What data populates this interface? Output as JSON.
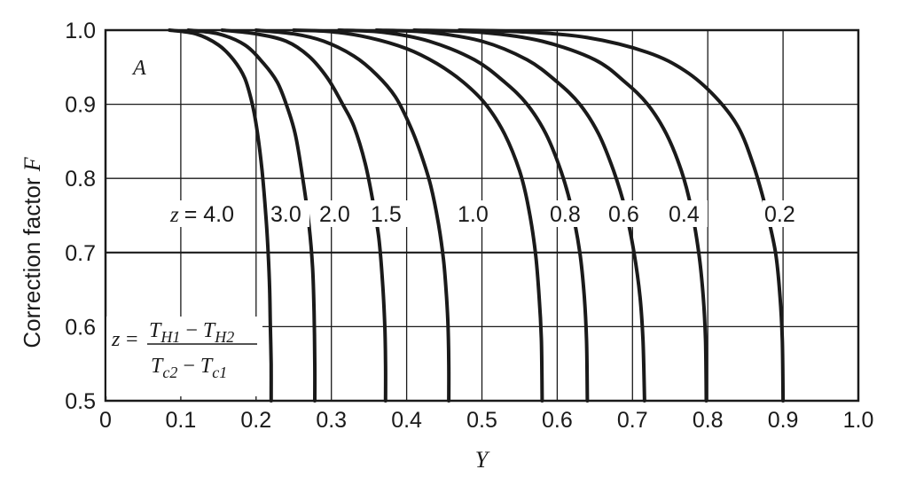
{
  "chart_data": {
    "type": "line",
    "title": "",
    "xlabel": "Y",
    "ylabel": {
      "text": "Correction factor ",
      "symbol": "F"
    },
    "xlim": [
      0,
      1.0
    ],
    "ylim": [
      0.5,
      1.0
    ],
    "grid": true,
    "panel_label": "A",
    "x_ticks": [
      "0",
      "0.1",
      "0.2",
      "0.3",
      "0.4",
      "0.5",
      "0.6",
      "0.7",
      "0.8",
      "0.9",
      "1.0"
    ],
    "y_ticks": [
      "0.5",
      "0.6",
      "0.7",
      "0.8",
      "0.9",
      "1.0"
    ],
    "formula": {
      "lhs": "z",
      "numerator": "T_{H1} − T_{H2}",
      "denominator": "T_{c2} − T_{c1}"
    },
    "series": [
      {
        "name": "z = 4.0",
        "label_prefix": "z",
        "label_value": "= 4.0",
        "points": [
          [
            0.085,
            1.0
          ],
          [
            0.12,
            0.995
          ],
          [
            0.15,
            0.98
          ],
          [
            0.17,
            0.96
          ],
          [
            0.185,
            0.935
          ],
          [
            0.195,
            0.9
          ],
          [
            0.202,
            0.86
          ],
          [
            0.208,
            0.81
          ],
          [
            0.213,
            0.75
          ],
          [
            0.216,
            0.7
          ],
          [
            0.218,
            0.65
          ],
          [
            0.219,
            0.6
          ],
          [
            0.22,
            0.55
          ],
          [
            0.22,
            0.5
          ]
        ]
      },
      {
        "name": "3.0",
        "label_value": "3.0",
        "points": [
          [
            0.11,
            1.0
          ],
          [
            0.15,
            0.995
          ],
          [
            0.185,
            0.98
          ],
          [
            0.21,
            0.955
          ],
          [
            0.228,
            0.93
          ],
          [
            0.24,
            0.9
          ],
          [
            0.252,
            0.86
          ],
          [
            0.262,
            0.8
          ],
          [
            0.27,
            0.74
          ],
          [
            0.275,
            0.68
          ],
          [
            0.277,
            0.62
          ],
          [
            0.278,
            0.55
          ],
          [
            0.278,
            0.5
          ]
        ]
      },
      {
        "name": "2.0",
        "label_value": "2.0",
        "points": [
          [
            0.155,
            1.0
          ],
          [
            0.2,
            0.995
          ],
          [
            0.24,
            0.985
          ],
          [
            0.27,
            0.965
          ],
          [
            0.295,
            0.935
          ],
          [
            0.315,
            0.9
          ],
          [
            0.33,
            0.87
          ],
          [
            0.345,
            0.82
          ],
          [
            0.355,
            0.77
          ],
          [
            0.363,
            0.72
          ],
          [
            0.368,
            0.66
          ],
          [
            0.371,
            0.6
          ],
          [
            0.372,
            0.55
          ],
          [
            0.372,
            0.5
          ]
        ]
      },
      {
        "name": "1.5",
        "label_value": "1.5",
        "points": [
          [
            0.2,
            1.0
          ],
          [
            0.25,
            0.995
          ],
          [
            0.29,
            0.985
          ],
          [
            0.33,
            0.965
          ],
          [
            0.36,
            0.94
          ],
          [
            0.385,
            0.91
          ],
          [
            0.405,
            0.87
          ],
          [
            0.42,
            0.83
          ],
          [
            0.432,
            0.79
          ],
          [
            0.442,
            0.74
          ],
          [
            0.449,
            0.69
          ],
          [
            0.453,
            0.64
          ],
          [
            0.455,
            0.6
          ],
          [
            0.456,
            0.55
          ],
          [
            0.456,
            0.5
          ]
        ]
      },
      {
        "name": "1.0",
        "label_value": "1.0",
        "points": [
          [
            0.25,
            1.0
          ],
          [
            0.3,
            0.998
          ],
          [
            0.35,
            0.99
          ],
          [
            0.4,
            0.975
          ],
          [
            0.44,
            0.955
          ],
          [
            0.475,
            0.93
          ],
          [
            0.505,
            0.9
          ],
          [
            0.53,
            0.86
          ],
          [
            0.55,
            0.81
          ],
          [
            0.562,
            0.76
          ],
          [
            0.571,
            0.7
          ],
          [
            0.576,
            0.64
          ],
          [
            0.579,
            0.58
          ],
          [
            0.58,
            0.5
          ]
        ]
      },
      {
        "name": "0.8",
        "label_value": "0.8",
        "points": [
          [
            0.31,
            1.0
          ],
          [
            0.37,
            0.997
          ],
          [
            0.43,
            0.985
          ],
          [
            0.49,
            0.96
          ],
          [
            0.53,
            0.93
          ],
          [
            0.56,
            0.9
          ],
          [
            0.585,
            0.86
          ],
          [
            0.605,
            0.81
          ],
          [
            0.619,
            0.76
          ],
          [
            0.63,
            0.7
          ],
          [
            0.636,
            0.64
          ],
          [
            0.639,
            0.58
          ],
          [
            0.64,
            0.5
          ]
        ]
      },
      {
        "name": "0.6",
        "label_value": "0.6",
        "points": [
          [
            0.36,
            1.0
          ],
          [
            0.43,
            0.997
          ],
          [
            0.5,
            0.985
          ],
          [
            0.56,
            0.96
          ],
          [
            0.6,
            0.93
          ],
          [
            0.63,
            0.9
          ],
          [
            0.655,
            0.86
          ],
          [
            0.675,
            0.81
          ],
          [
            0.69,
            0.76
          ],
          [
            0.702,
            0.7
          ],
          [
            0.71,
            0.64
          ],
          [
            0.714,
            0.58
          ],
          [
            0.716,
            0.5
          ]
        ]
      },
      {
        "name": "0.4",
        "label_value": "0.4",
        "points": [
          [
            0.41,
            1.0
          ],
          [
            0.5,
            0.997
          ],
          [
            0.58,
            0.985
          ],
          [
            0.65,
            0.96
          ],
          [
            0.69,
            0.93
          ],
          [
            0.72,
            0.9
          ],
          [
            0.745,
            0.86
          ],
          [
            0.765,
            0.81
          ],
          [
            0.778,
            0.76
          ],
          [
            0.788,
            0.7
          ],
          [
            0.794,
            0.64
          ],
          [
            0.797,
            0.58
          ],
          [
            0.798,
            0.5
          ]
        ]
      },
      {
        "name": "0.2",
        "label_value": "0.2",
        "points": [
          [
            0.47,
            1.0
          ],
          [
            0.55,
            0.998
          ],
          [
            0.64,
            0.99
          ],
          [
            0.72,
            0.97
          ],
          [
            0.77,
            0.945
          ],
          [
            0.81,
            0.91
          ],
          [
            0.84,
            0.87
          ],
          [
            0.86,
            0.82
          ],
          [
            0.877,
            0.76
          ],
          [
            0.89,
            0.7
          ],
          [
            0.896,
            0.64
          ],
          [
            0.899,
            0.58
          ],
          [
            0.9,
            0.5
          ]
        ]
      }
    ]
  }
}
